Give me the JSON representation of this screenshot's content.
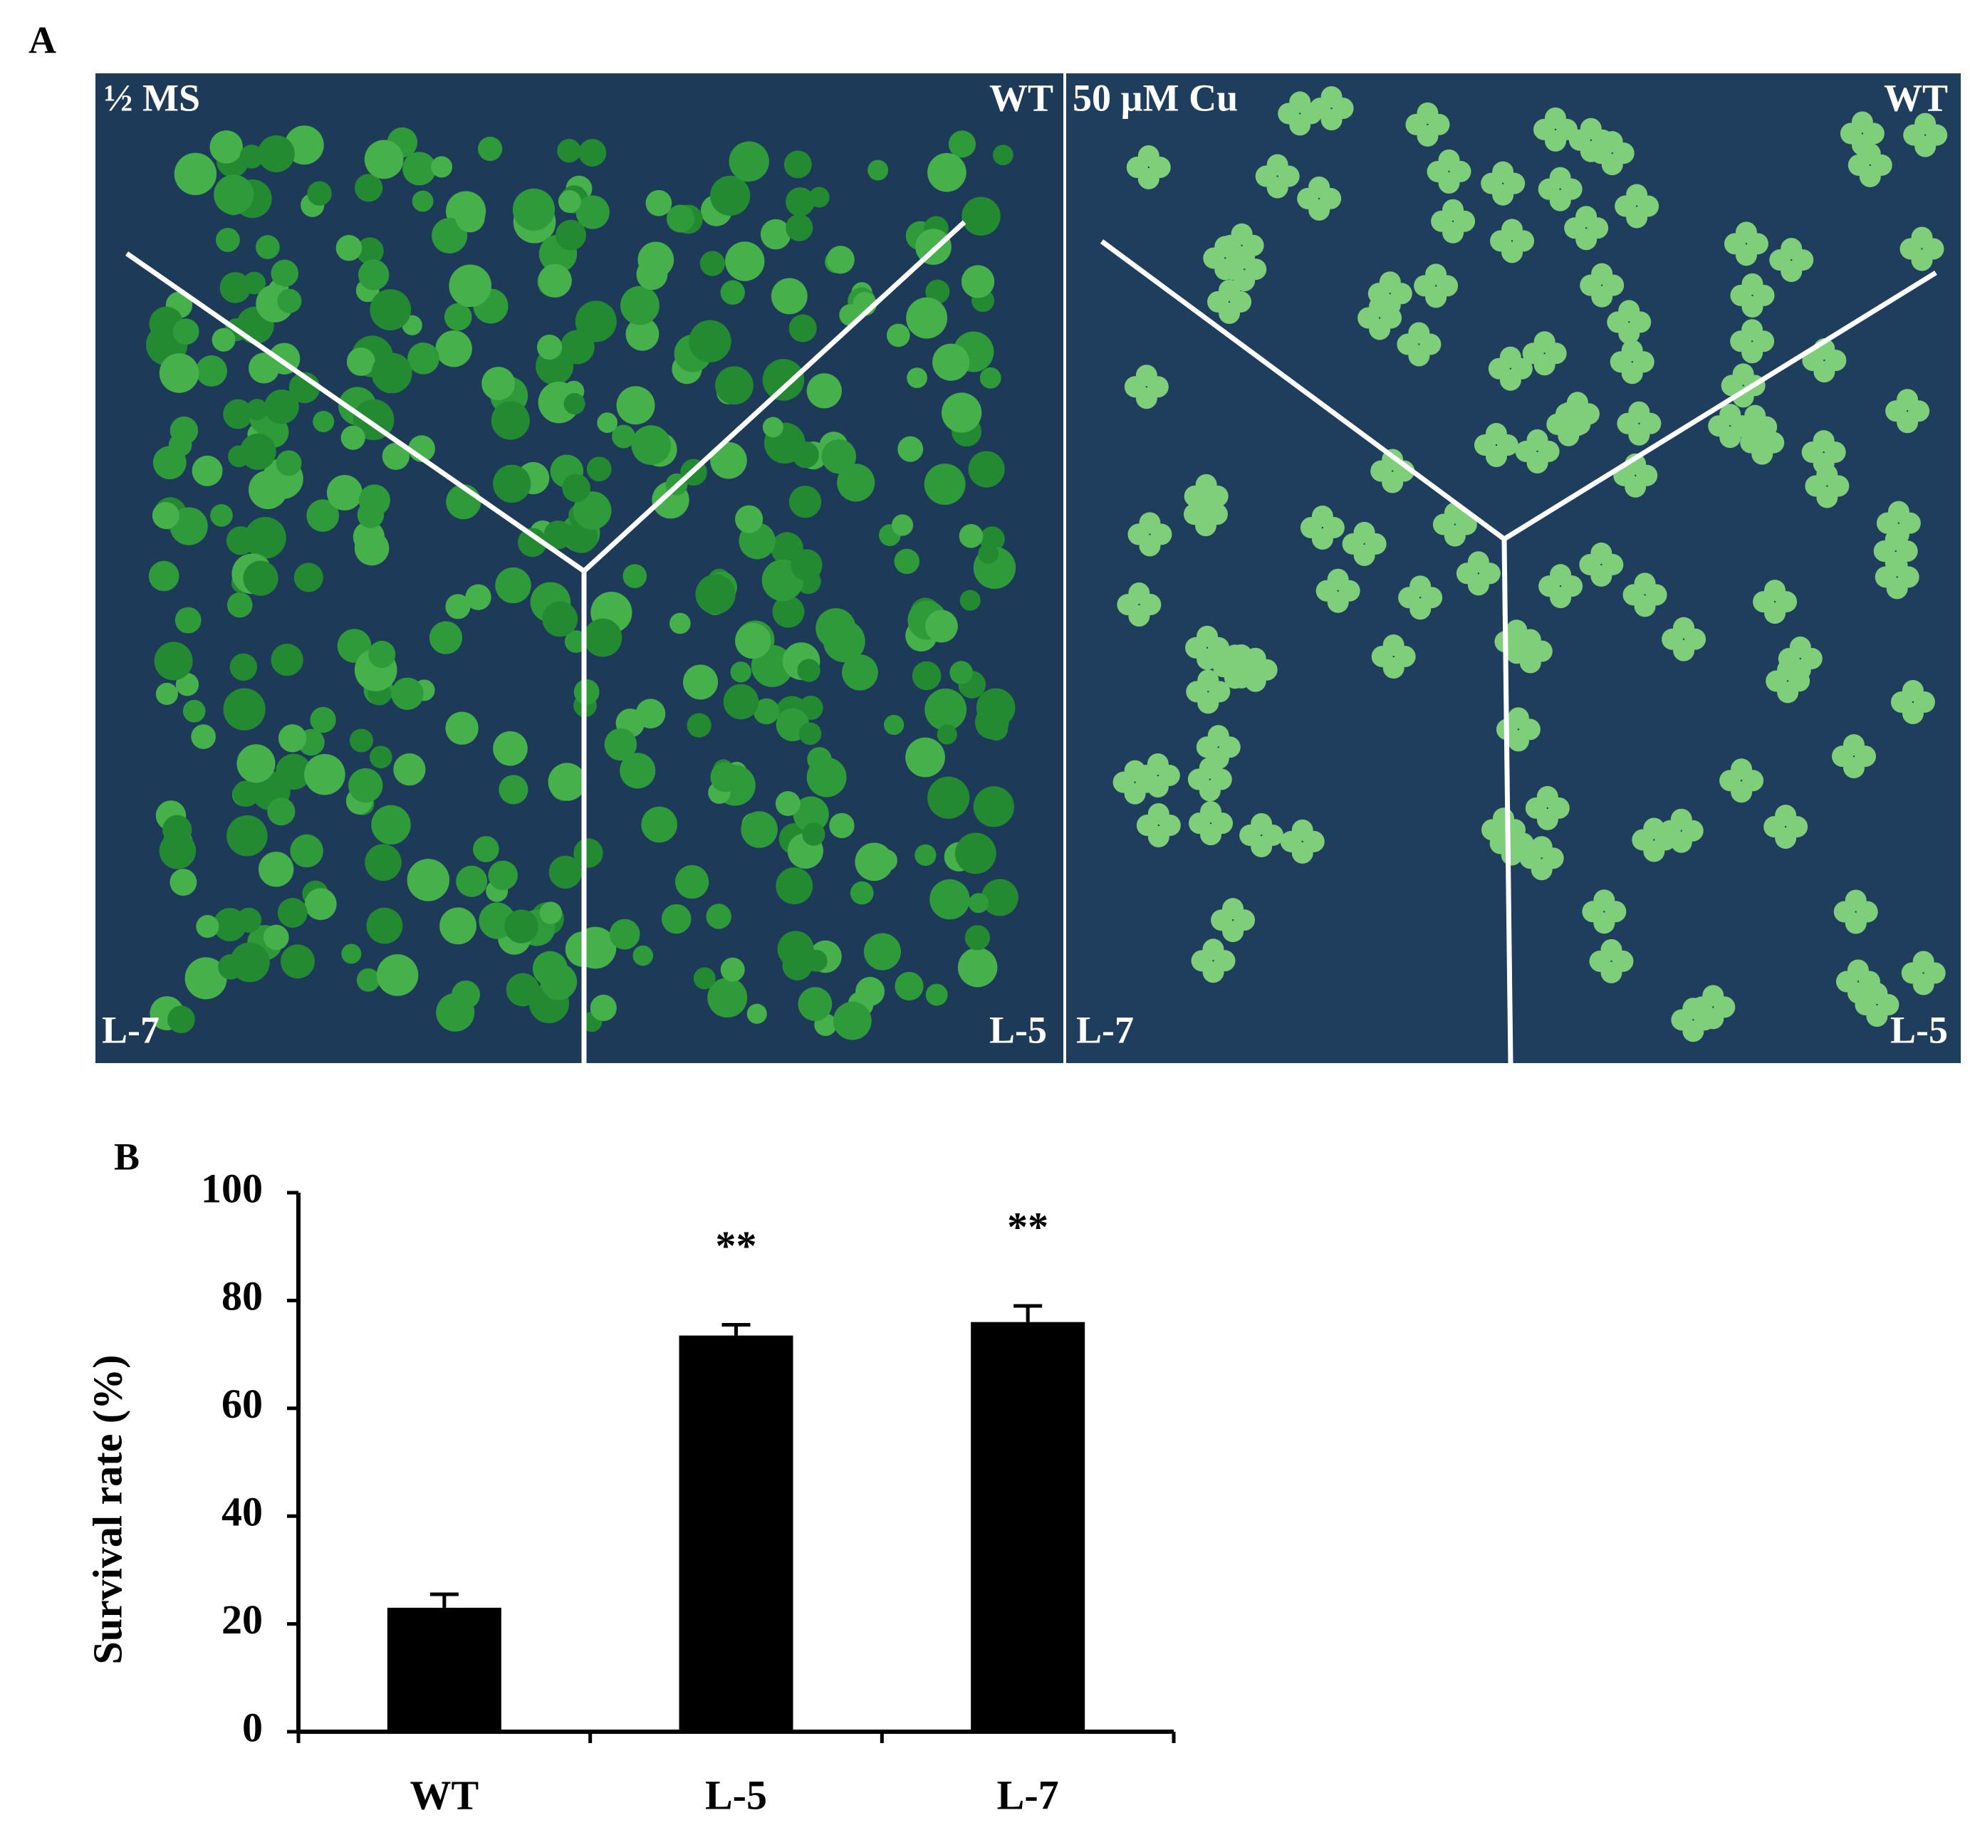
{
  "panel_a": {
    "label": "A",
    "left": {
      "medium": "½ MS",
      "top_right": "WT",
      "bottom_left": "L-7",
      "bottom_right": "L-5"
    },
    "right": {
      "medium": "50 µM Cu",
      "top_right": "WT",
      "bottom_left": "L-7",
      "bottom_right": "L-5"
    }
  },
  "chart_data": {
    "type": "bar",
    "panel_label": "B",
    "y_label": "Survival  rate (%)",
    "categories": [
      "WT",
      "L-5",
      "L-7"
    ],
    "values": [
      23,
      73.5,
      76
    ],
    "errors": [
      2.5,
      2,
      3
    ],
    "significance": [
      null,
      "**",
      "**"
    ],
    "color": "#000000",
    "ylim": [
      0,
      100
    ],
    "yticks": [
      0,
      20,
      40,
      60,
      80,
      100
    ],
    "grid": false
  }
}
